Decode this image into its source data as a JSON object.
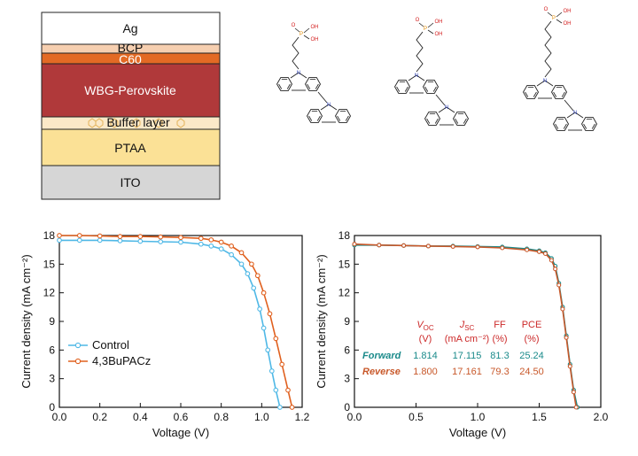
{
  "colors": {
    "control": "#4fb8e6",
    "bupacz": "#e0601e",
    "forward": "#1a8a8a",
    "reverse": "#c8582a",
    "table_header": "#cc2a2a"
  },
  "stack": {
    "layers": [
      {
        "label": "Ag",
        "color": "#ffffff"
      },
      {
        "label": "BCP",
        "color": "#f6cfb0"
      },
      {
        "label": "C60",
        "color": "#e36a24"
      },
      {
        "label": "WBG-Perovskite",
        "color": "#b0393a"
      },
      {
        "label": "Buffer layer",
        "color": "#fbe9c8"
      },
      {
        "label": "PTAA",
        "color": "#fbe196"
      },
      {
        "label": "ITO",
        "color": "#d6d6d6"
      }
    ]
  },
  "molecules": {
    "atom_labels": {
      "n": "N",
      "p": "P",
      "o": "O",
      "oh": "OH"
    }
  },
  "chart_data": [
    {
      "type": "line",
      "xlabel": "Voltage (V)",
      "ylabel": "Current density (mA cm⁻²)",
      "xlim": [
        0.0,
        1.2
      ],
      "ylim": [
        0,
        18
      ],
      "xticks": [
        "0.0",
        "0.2",
        "0.4",
        "0.6",
        "0.8",
        "1.0",
        "1.2"
      ],
      "yticks": [
        "0",
        "3",
        "6",
        "9",
        "12",
        "15",
        "18"
      ],
      "legend_position": "lower-left",
      "series": [
        {
          "name": "Control",
          "x": [
            0.0,
            0.1,
            0.2,
            0.3,
            0.4,
            0.5,
            0.6,
            0.7,
            0.75,
            0.8,
            0.85,
            0.9,
            0.93,
            0.96,
            0.99,
            1.01,
            1.03,
            1.05,
            1.07,
            1.09
          ],
          "y": [
            17.5,
            17.5,
            17.5,
            17.45,
            17.4,
            17.35,
            17.3,
            17.1,
            16.9,
            16.6,
            16.0,
            15.0,
            14.0,
            12.5,
            10.3,
            8.3,
            6.0,
            3.8,
            1.8,
            0
          ]
        },
        {
          "name": "4,3BuPACz",
          "x": [
            0.0,
            0.1,
            0.2,
            0.3,
            0.4,
            0.5,
            0.6,
            0.7,
            0.75,
            0.8,
            0.85,
            0.9,
            0.95,
            0.98,
            1.01,
            1.04,
            1.07,
            1.1,
            1.13,
            1.15
          ],
          "y": [
            18.0,
            18.0,
            17.95,
            17.9,
            17.9,
            17.85,
            17.8,
            17.7,
            17.55,
            17.3,
            16.9,
            16.2,
            15.0,
            13.8,
            12.0,
            9.8,
            7.2,
            4.5,
            1.8,
            0
          ]
        }
      ]
    },
    {
      "type": "line",
      "xlabel": "Voltage (V)",
      "ylabel": "Current density (mA cm⁻²)",
      "xlim": [
        0.0,
        2.0
      ],
      "ylim": [
        0,
        18
      ],
      "xticks": [
        "0.0",
        "0.5",
        "1.0",
        "1.5",
        "2.0"
      ],
      "yticks": [
        "0",
        "3",
        "6",
        "9",
        "12",
        "15",
        "18"
      ],
      "series": [
        {
          "name": "Forward",
          "x": [
            0.0,
            0.2,
            0.4,
            0.6,
            0.8,
            1.0,
            1.2,
            1.4,
            1.5,
            1.55,
            1.6,
            1.63,
            1.66,
            1.69,
            1.72,
            1.75,
            1.78,
            1.81
          ],
          "y": [
            17.0,
            17.0,
            16.95,
            16.9,
            16.9,
            16.85,
            16.8,
            16.6,
            16.4,
            16.2,
            15.6,
            14.8,
            13.0,
            10.5,
            7.5,
            4.5,
            1.8,
            0
          ]
        },
        {
          "name": "Reverse",
          "x": [
            0.0,
            0.2,
            0.4,
            0.6,
            0.8,
            1.0,
            1.2,
            1.4,
            1.5,
            1.55,
            1.6,
            1.63,
            1.66,
            1.69,
            1.72,
            1.75,
            1.78,
            1.8
          ],
          "y": [
            17.1,
            17.0,
            16.95,
            16.9,
            16.85,
            16.8,
            16.7,
            16.5,
            16.3,
            16.1,
            15.4,
            14.5,
            12.8,
            10.3,
            7.3,
            4.3,
            1.6,
            0
          ]
        }
      ],
      "table": {
        "headers": [
          {
            "main": "V",
            "sub": "OC",
            "unit": "(V)"
          },
          {
            "main": "J",
            "sub": "SC",
            "unit": "(mA cm⁻²)"
          },
          {
            "main": "FF",
            "sub": "",
            "unit": "(%)"
          },
          {
            "main": "PCE",
            "sub": "",
            "unit": "(%)"
          }
        ],
        "rows": [
          {
            "label": "Forward",
            "values": [
              "1.814",
              "17.115",
              "81.3",
              "25.24"
            ]
          },
          {
            "label": "Reverse",
            "values": [
              "1.800",
              "17.161",
              "79.3",
              "24.50"
            ]
          }
        ]
      }
    }
  ]
}
